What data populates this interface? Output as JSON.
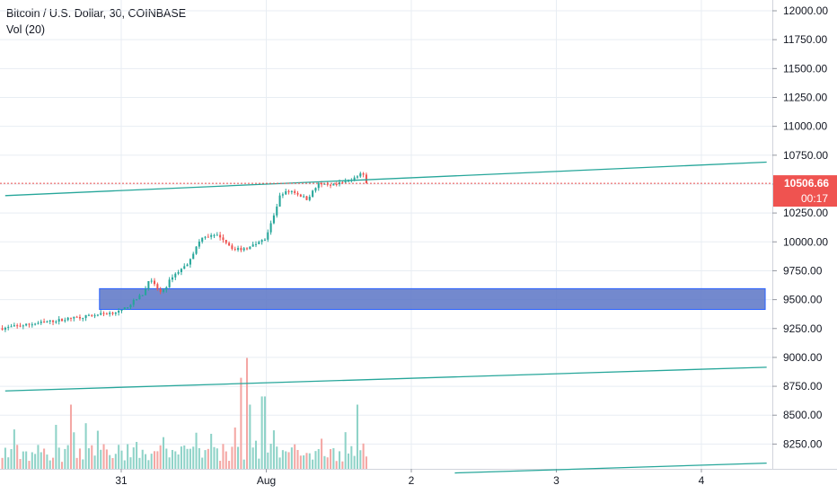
{
  "legend": {
    "title": "Bitcoin / U.S. Dollar, 30, COINBASE",
    "volume_label": "Vol (20)"
  },
  "price_badge": {
    "price": "10506.66",
    "countdown": "00:17",
    "color": "#ef5350"
  },
  "colors": {
    "up": "#26a69a",
    "down": "#ef5350",
    "vol_up": "#8fd3c8",
    "vol_down": "#f4a7a4",
    "trendline": "#26a69a",
    "zone_fill": "#5b74c6",
    "zone_border": "#2962ff",
    "grid": "#e8edf3",
    "axis_text": "#131722"
  },
  "chart_data": {
    "type": "candlestick",
    "title": "Bitcoin / U.S. Dollar, 30, COINBASE",
    "y_axis_ticks": [
      "12000.00",
      "11750.00",
      "11500.00",
      "11250.00",
      "11000.00",
      "10750.00",
      "10500.00",
      "10250.00",
      "10000.00",
      "9750.00",
      "9500.00",
      "9250.00",
      "9000.00",
      "8750.00",
      "8500.00",
      "8250.00"
    ],
    "x_axis_ticks": [
      "31",
      "Aug",
      "2",
      "3",
      "4"
    ],
    "ylim": [
      8000,
      12150
    ],
    "last_price": 10506.66,
    "price_path_anchors": [
      {
        "t": 0.0,
        "p": 9400
      },
      {
        "t": 0.16,
        "p": 9560
      },
      {
        "t": 0.19,
        "p": 9680
      },
      {
        "t": 0.28,
        "p": 9550
      },
      {
        "t": 0.35,
        "p": 9700
      },
      {
        "t": 0.45,
        "p": 9800
      },
      {
        "t": 0.56,
        "p": 10050
      },
      {
        "t": 0.68,
        "p": 10050
      },
      {
        "t": 0.78,
        "p": 9930
      },
      {
        "t": 0.88,
        "p": 9950
      },
      {
        "t": 1.0,
        "p": 10030
      },
      {
        "t": 1.1,
        "p": 10420
      },
      {
        "t": 1.18,
        "p": 10440
      },
      {
        "t": 1.28,
        "p": 10370
      },
      {
        "t": 1.36,
        "p": 10500
      },
      {
        "t": 1.44,
        "p": 10480
      },
      {
        "t": 1.55,
        "p": 10520
      },
      {
        "t": 1.66,
        "p": 10600
      },
      {
        "t": 1.69,
        "p": 10506.66
      }
    ],
    "trendlines": [
      {
        "from": {
          "t": -0.8,
          "p": 10400
        },
        "to": {
          "t": 4.45,
          "p": 10690
        }
      },
      {
        "from": {
          "t": -0.8,
          "p": 8710
        },
        "to": {
          "t": 4.45,
          "p": 8915
        }
      },
      {
        "from": {
          "t": 2.3,
          "p": 8000
        },
        "to": {
          "t": 4.45,
          "p": 8085
        }
      }
    ],
    "zone": {
      "t_start": -0.15,
      "t_end": 4.44,
      "p_low": 9415,
      "p_high": 9595
    },
    "volume_spikes": [
      {
        "t": -0.35,
        "v": 0.55
      },
      {
        "t": 0.82,
        "v": 0.78
      },
      {
        "t": 0.86,
        "v": 0.95
      },
      {
        "t": 0.88,
        "v": 0.55
      },
      {
        "t": 0.98,
        "v": 0.62
      },
      {
        "t": 1.05,
        "v": 0.33
      },
      {
        "t": 1.62,
        "v": 0.55
      }
    ]
  }
}
